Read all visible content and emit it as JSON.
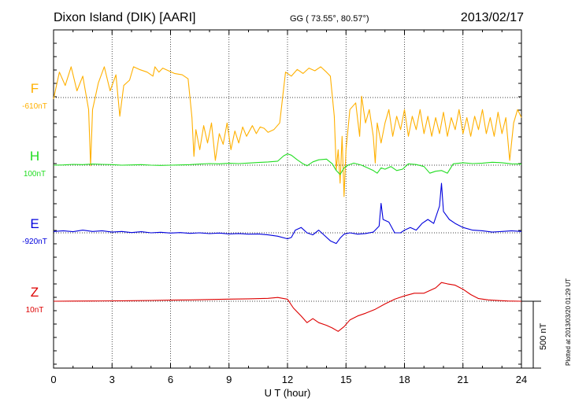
{
  "header": {
    "station": "Dixon Island (DIK)  [AARI]",
    "coords": "GG ( 73.55°,  80.57°)",
    "date": "2013/02/17"
  },
  "footer": {
    "plotted": "Plotted at 2013/03/20 01:29 UT",
    "scale_label": "500 nT"
  },
  "colors": {
    "F": "#ffb000",
    "H": "#22dd22",
    "E": "#0000dd",
    "Z": "#dd0000",
    "grid": "#000000"
  },
  "chart_data": {
    "type": "line",
    "xlabel": "U T (hour)",
    "xlim": [
      0,
      24
    ],
    "x_ticks": [
      "0",
      "3",
      "6",
      "9",
      "12",
      "15",
      "18",
      "21",
      "24"
    ],
    "scale_nT": 500,
    "series": [
      {
        "name": "F",
        "baseline_label": "-610nT",
        "baseline_nT": -610,
        "points": [
          [
            0,
            -620
          ],
          [
            0.3,
            -420
          ],
          [
            0.6,
            -520
          ],
          [
            0.9,
            -380
          ],
          [
            1.2,
            -560
          ],
          [
            1.5,
            -450
          ],
          [
            1.8,
            -700
          ],
          [
            1.9,
            -1120
          ],
          [
            2.0,
            -700
          ],
          [
            2.3,
            -500
          ],
          [
            2.6,
            -380
          ],
          [
            2.9,
            -560
          ],
          [
            3.2,
            -440
          ],
          [
            3.4,
            -750
          ],
          [
            3.6,
            -520
          ],
          [
            3.9,
            -480
          ],
          [
            4.1,
            -380
          ],
          [
            4.4,
            -400
          ],
          [
            4.8,
            -420
          ],
          [
            5.1,
            -450
          ],
          [
            5.2,
            -380
          ],
          [
            5.4,
            -420
          ],
          [
            5.6,
            -390
          ],
          [
            5.9,
            -410
          ],
          [
            6.2,
            -430
          ],
          [
            6.6,
            -440
          ],
          [
            6.9,
            -470
          ],
          [
            7.1,
            -760
          ],
          [
            7.2,
            -1050
          ],
          [
            7.3,
            -850
          ],
          [
            7.5,
            -1000
          ],
          [
            7.7,
            -820
          ],
          [
            7.9,
            -950
          ],
          [
            8.1,
            -800
          ],
          [
            8.3,
            -1080
          ],
          [
            8.5,
            -880
          ],
          [
            8.7,
            -960
          ],
          [
            8.9,
            -800
          ],
          [
            9.1,
            -1000
          ],
          [
            9.3,
            -860
          ],
          [
            9.5,
            -950
          ],
          [
            9.7,
            -830
          ],
          [
            9.9,
            -900
          ],
          [
            10.2,
            -820
          ],
          [
            10.4,
            -880
          ],
          [
            10.6,
            -830
          ],
          [
            10.8,
            -840
          ],
          [
            11.0,
            -870
          ],
          [
            11.3,
            -850
          ],
          [
            11.6,
            -800
          ],
          [
            11.9,
            -420
          ],
          [
            12.2,
            -450
          ],
          [
            12.5,
            -400
          ],
          [
            12.8,
            -430
          ],
          [
            13.1,
            -390
          ],
          [
            13.4,
            -410
          ],
          [
            13.7,
            -380
          ],
          [
            14.0,
            -420
          ],
          [
            14.2,
            -450
          ],
          [
            14.4,
            -750
          ],
          [
            14.5,
            -1150
          ],
          [
            14.6,
            -1000
          ],
          [
            14.7,
            -1250
          ],
          [
            14.8,
            -900
          ],
          [
            14.9,
            -1350
          ],
          [
            15.0,
            -1000
          ],
          [
            15.2,
            -700
          ],
          [
            15.5,
            -650
          ],
          [
            15.7,
            -900
          ],
          [
            15.8,
            -600
          ],
          [
            16.0,
            -800
          ],
          [
            16.2,
            -700
          ],
          [
            16.4,
            -900
          ],
          [
            16.5,
            -1100
          ],
          [
            16.6,
            -800
          ],
          [
            16.8,
            -950
          ],
          [
            17.0,
            -800
          ],
          [
            17.2,
            -700
          ],
          [
            17.4,
            -900
          ],
          [
            17.6,
            -750
          ],
          [
            17.8,
            -850
          ],
          [
            18.0,
            -700
          ],
          [
            18.2,
            -900
          ],
          [
            18.4,
            -750
          ],
          [
            18.6,
            -850
          ],
          [
            18.8,
            -700
          ],
          [
            19.0,
            -880
          ],
          [
            19.2,
            -750
          ],
          [
            19.4,
            -900
          ],
          [
            19.6,
            -760
          ],
          [
            19.8,
            -880
          ],
          [
            20.0,
            -720
          ],
          [
            20.2,
            -900
          ],
          [
            20.4,
            -760
          ],
          [
            20.6,
            -850
          ],
          [
            20.8,
            -700
          ],
          [
            21.0,
            -880
          ],
          [
            21.2,
            -760
          ],
          [
            21.4,
            -900
          ],
          [
            21.6,
            -750
          ],
          [
            21.8,
            -850
          ],
          [
            22.0,
            -700
          ],
          [
            22.2,
            -880
          ],
          [
            22.4,
            -760
          ],
          [
            22.6,
            -900
          ],
          [
            22.8,
            -720
          ],
          [
            23.0,
            -880
          ],
          [
            23.2,
            -760
          ],
          [
            23.4,
            -1080
          ],
          [
            23.6,
            -800
          ],
          [
            23.8,
            -700
          ],
          [
            24.0,
            -760
          ]
        ]
      },
      {
        "name": "H",
        "baseline_label": "100nT",
        "baseline_nT": 100,
        "points": [
          [
            0,
            100
          ],
          [
            0.5,
            102
          ],
          [
            1,
            106
          ],
          [
            1.5,
            104
          ],
          [
            2,
            108
          ],
          [
            2.5,
            106
          ],
          [
            3,
            104
          ],
          [
            3.5,
            100
          ],
          [
            4,
            102
          ],
          [
            4.5,
            104
          ],
          [
            5,
            100
          ],
          [
            5.5,
            98
          ],
          [
            6,
            100
          ],
          [
            6.5,
            102
          ],
          [
            7,
            104
          ],
          [
            7.5,
            108
          ],
          [
            8,
            112
          ],
          [
            8.5,
            110
          ],
          [
            9,
            114
          ],
          [
            9.5,
            112
          ],
          [
            10,
            116
          ],
          [
            10.5,
            120
          ],
          [
            11,
            124
          ],
          [
            11.5,
            130
          ],
          [
            11.8,
            170
          ],
          [
            12,
            185
          ],
          [
            12.2,
            175
          ],
          [
            12.5,
            140
          ],
          [
            12.8,
            110
          ],
          [
            13,
            95
          ],
          [
            13.3,
            125
          ],
          [
            13.6,
            140
          ],
          [
            14,
            145
          ],
          [
            14.3,
            110
          ],
          [
            14.5,
            60
          ],
          [
            14.7,
            30
          ],
          [
            14.9,
            80
          ],
          [
            15.1,
            100
          ],
          [
            15.4,
            115
          ],
          [
            15.8,
            100
          ],
          [
            16.1,
            80
          ],
          [
            16.4,
            60
          ],
          [
            16.6,
            40
          ],
          [
            16.8,
            80
          ],
          [
            17.0,
            70
          ],
          [
            17.3,
            90
          ],
          [
            17.6,
            60
          ],
          [
            17.9,
            70
          ],
          [
            18.2,
            110
          ],
          [
            18.6,
            105
          ],
          [
            19.0,
            90
          ],
          [
            19.3,
            40
          ],
          [
            19.6,
            55
          ],
          [
            19.9,
            60
          ],
          [
            20.2,
            40
          ],
          [
            20.5,
            110
          ],
          [
            21,
            118
          ],
          [
            21.5,
            112
          ],
          [
            22,
            115
          ],
          [
            22.5,
            122
          ],
          [
            23,
            118
          ],
          [
            23.5,
            110
          ],
          [
            24,
            108
          ]
        ]
      },
      {
        "name": "E",
        "baseline_label": "-920nT",
        "baseline_nT": -920,
        "points": [
          [
            0,
            -910
          ],
          [
            0.5,
            -905
          ],
          [
            1,
            -912
          ],
          [
            1.5,
            -900
          ],
          [
            2,
            -910
          ],
          [
            2.5,
            -905
          ],
          [
            3,
            -915
          ],
          [
            3.5,
            -910
          ],
          [
            4,
            -918
          ],
          [
            4.5,
            -912
          ],
          [
            5,
            -920
          ],
          [
            5.5,
            -916
          ],
          [
            6,
            -922
          ],
          [
            6.5,
            -918
          ],
          [
            7,
            -924
          ],
          [
            7.5,
            -920
          ],
          [
            8,
            -926
          ],
          [
            8.5,
            -922
          ],
          [
            9,
            -928
          ],
          [
            9.5,
            -925
          ],
          [
            10,
            -930
          ],
          [
            10.5,
            -928
          ],
          [
            11,
            -935
          ],
          [
            11.5,
            -945
          ],
          [
            12,
            -965
          ],
          [
            12.2,
            -955
          ],
          [
            12.4,
            -900
          ],
          [
            12.7,
            -880
          ],
          [
            13,
            -920
          ],
          [
            13.3,
            -935
          ],
          [
            13.6,
            -900
          ],
          [
            13.9,
            -940
          ],
          [
            14.2,
            -980
          ],
          [
            14.5,
            -1000
          ],
          [
            14.7,
            -960
          ],
          [
            14.9,
            -930
          ],
          [
            15.2,
            -920
          ],
          [
            15.6,
            -930
          ],
          [
            16.0,
            -925
          ],
          [
            16.4,
            -915
          ],
          [
            16.7,
            -870
          ],
          [
            16.8,
            -700
          ],
          [
            16.9,
            -820
          ],
          [
            17.2,
            -840
          ],
          [
            17.5,
            -920
          ],
          [
            17.8,
            -920
          ],
          [
            18.0,
            -900
          ],
          [
            18.3,
            -880
          ],
          [
            18.6,
            -900
          ],
          [
            18.9,
            -850
          ],
          [
            19.2,
            -820
          ],
          [
            19.5,
            -850
          ],
          [
            19.8,
            -720
          ],
          [
            19.9,
            -550
          ],
          [
            20.0,
            -760
          ],
          [
            20.3,
            -820
          ],
          [
            20.6,
            -850
          ],
          [
            21,
            -880
          ],
          [
            21.5,
            -900
          ],
          [
            22,
            -905
          ],
          [
            22.5,
            -915
          ],
          [
            23,
            -910
          ],
          [
            23.5,
            -905
          ],
          [
            24,
            -910
          ]
        ]
      },
      {
        "name": "Z",
        "baseline_label": "10nT",
        "baseline_nT": 10,
        "points": [
          [
            0,
            10
          ],
          [
            1,
            11
          ],
          [
            2,
            12
          ],
          [
            3,
            13
          ],
          [
            4,
            14
          ],
          [
            5,
            16
          ],
          [
            6,
            18
          ],
          [
            7,
            20
          ],
          [
            8,
            23
          ],
          [
            9,
            26
          ],
          [
            10,
            28
          ],
          [
            11,
            32
          ],
          [
            11.5,
            38
          ],
          [
            12,
            25
          ],
          [
            12.3,
            -40
          ],
          [
            12.7,
            -100
          ],
          [
            13,
            -150
          ],
          [
            13.3,
            -120
          ],
          [
            13.6,
            -150
          ],
          [
            14,
            -170
          ],
          [
            14.3,
            -190
          ],
          [
            14.6,
            -215
          ],
          [
            14.9,
            -180
          ],
          [
            15.2,
            -130
          ],
          [
            15.6,
            -100
          ],
          [
            16,
            -80
          ],
          [
            16.5,
            -50
          ],
          [
            17,
            -10
          ],
          [
            17.5,
            25
          ],
          [
            18,
            50
          ],
          [
            18.5,
            70
          ],
          [
            19,
            70
          ],
          [
            19.3,
            90
          ],
          [
            19.6,
            110
          ],
          [
            19.9,
            150
          ],
          [
            20.2,
            140
          ],
          [
            20.6,
            130
          ],
          [
            21,
            100
          ],
          [
            21.4,
            60
          ],
          [
            21.8,
            30
          ],
          [
            22.3,
            20
          ],
          [
            22.8,
            15
          ],
          [
            23.3,
            12
          ],
          [
            24,
            10
          ]
        ]
      }
    ]
  }
}
